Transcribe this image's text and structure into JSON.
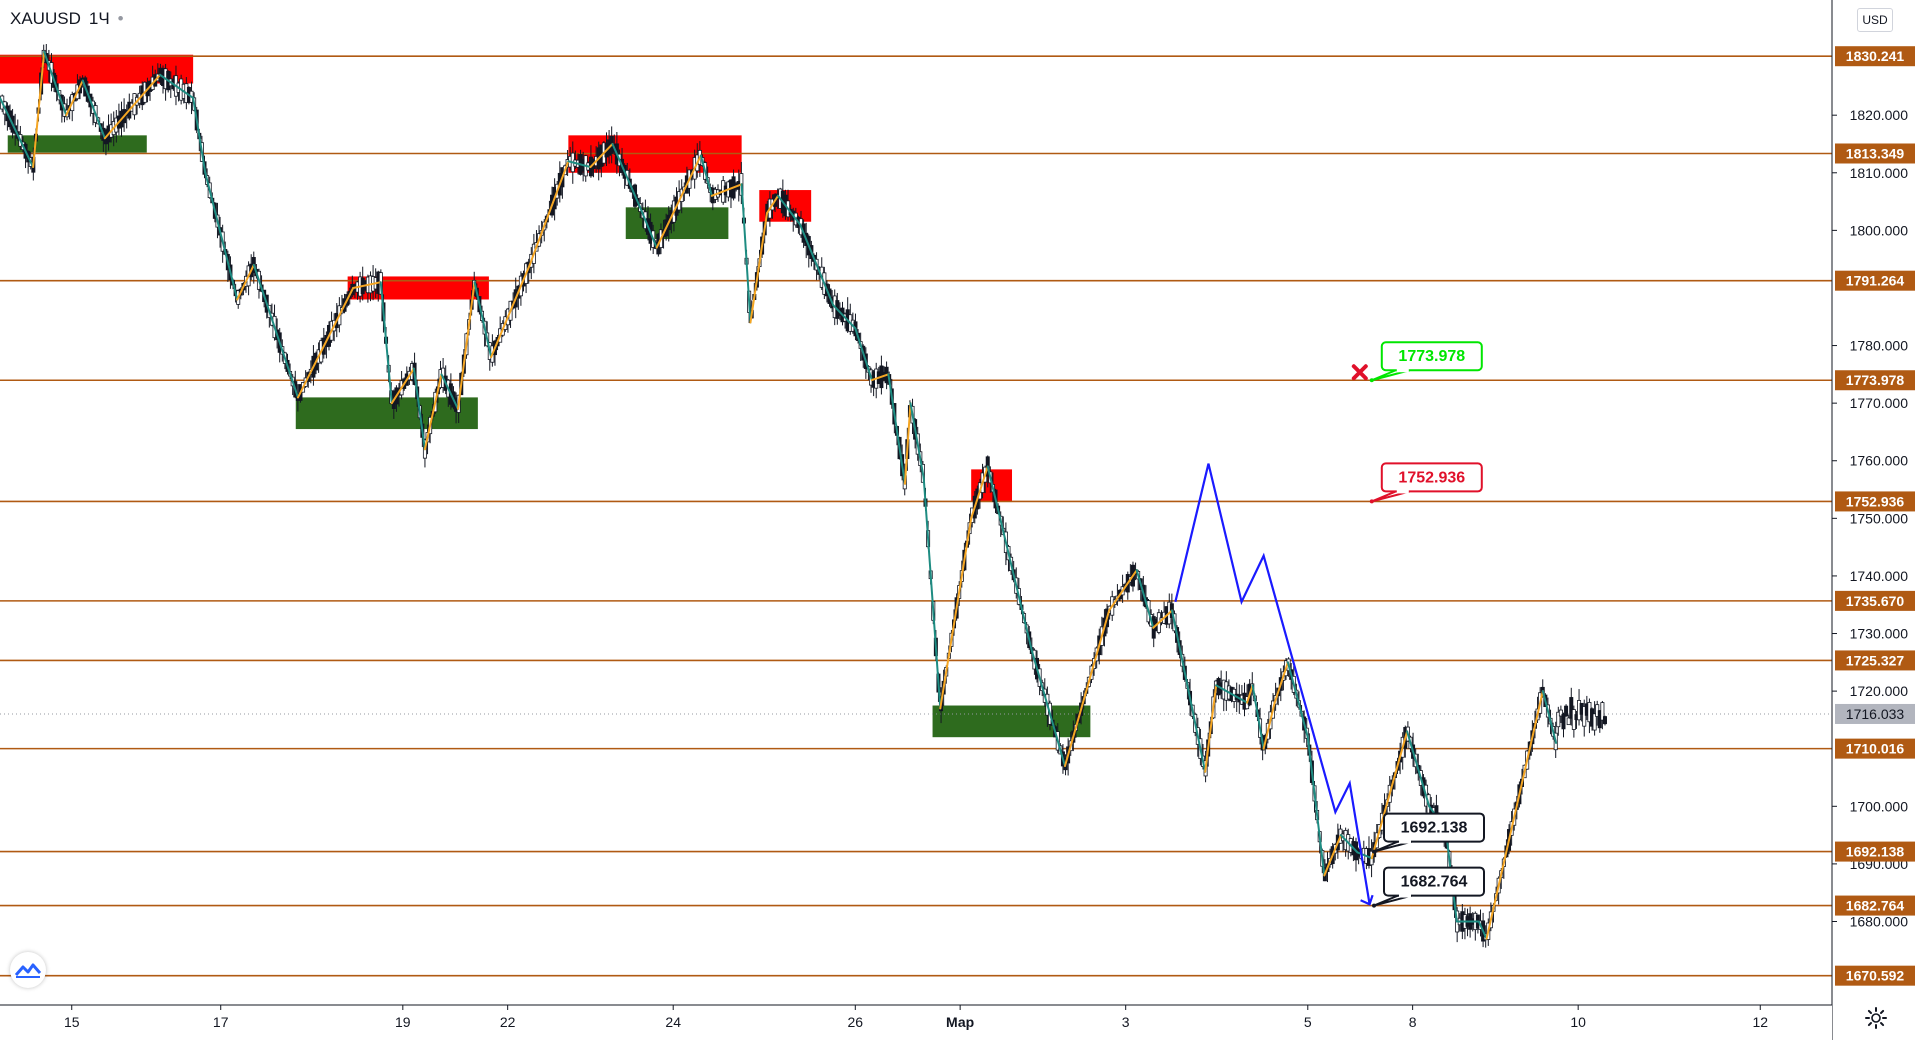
{
  "header": {
    "symbol": "XAUUSD",
    "interval": "1Ч",
    "dot": "•"
  },
  "currency_button": "USD",
  "colors": {
    "level_line": "#b05a13",
    "level_label_bg": "#b05a13",
    "supply_zone": "#ff0000",
    "demand_zone": "#2e6b1e",
    "wave_up": "#f5a623",
    "wave_down": "#1e8c82",
    "projection": "#1a1aff",
    "callout_green": "#00e600",
    "callout_red": "#e0102a",
    "current_price_bg": "#b2b5be",
    "candle": "#131722"
  },
  "icons": {
    "logo": "tradingview-logo-icon",
    "settings": "gear-icon",
    "cross": "cross-icon"
  },
  "chart_data": {
    "type": "candlestick",
    "symbol": "XAUUSD",
    "timeframe": "1H",
    "ylim": [
      1665.5,
      1840.0
    ],
    "xlim": [
      0,
      16.6
    ],
    "yticks": [
      1820,
      1810,
      1800,
      1780,
      1770,
      1760,
      1750,
      1740,
      1730,
      1720,
      1700,
      1690,
      1680
    ],
    "ytick_labels": [
      "1820.000",
      "1810.000",
      "1800.000",
      "1780.000",
      "1770.000",
      "1760.000",
      "1750.000",
      "1740.000",
      "1730.000",
      "1720.000",
      "1700.000",
      "1690.000",
      "1680.000"
    ],
    "xticks": [
      {
        "x": 0.65,
        "label": "15"
      },
      {
        "x": 2.0,
        "label": "17"
      },
      {
        "x": 3.65,
        "label": "19"
      },
      {
        "x": 4.6,
        "label": "22"
      },
      {
        "x": 6.1,
        "label": "24"
      },
      {
        "x": 7.75,
        "label": "26"
      },
      {
        "x": 8.7,
        "label": "Мар"
      },
      {
        "x": 10.2,
        "label": "3"
      },
      {
        "x": 11.85,
        "label": "5"
      },
      {
        "x": 12.8,
        "label": "8"
      },
      {
        "x": 14.3,
        "label": "10"
      },
      {
        "x": 15.95,
        "label": "12"
      }
    ],
    "levels": [
      1830.241,
      1813.349,
      1791.264,
      1773.978,
      1752.936,
      1735.67,
      1725.327,
      1710.016,
      1692.138,
      1682.764,
      1670.592
    ],
    "level_labels": [
      "1830.241",
      "1813.349",
      "1791.264",
      "1773.978",
      "1752.936",
      "1735.670",
      "1725.327",
      "1710.016",
      "1692.138",
      "1682.764",
      "1670.592"
    ],
    "current_price": 1716.033,
    "current_price_label": "1716.033",
    "supply_zones": [
      {
        "x0": 0.0,
        "x1": 1.75,
        "y0": 1825.5,
        "y1": 1830.5
      },
      {
        "x0": 5.15,
        "x1": 6.72,
        "y0": 1810.0,
        "y1": 1816.5
      },
      {
        "x0": 6.88,
        "x1": 7.35,
        "y0": 1801.5,
        "y1": 1807.0
      },
      {
        "x0": 3.15,
        "x1": 4.43,
        "y0": 1788.0,
        "y1": 1792.0
      },
      {
        "x0": 8.8,
        "x1": 9.17,
        "y0": 1753.0,
        "y1": 1758.5
      }
    ],
    "demand_zones": [
      {
        "x0": 0.07,
        "x1": 1.33,
        "y0": 1813.5,
        "y1": 1816.5
      },
      {
        "x0": 5.67,
        "x1": 6.6,
        "y0": 1798.5,
        "y1": 1804.0
      },
      {
        "x0": 2.68,
        "x1": 4.33,
        "y0": 1765.5,
        "y1": 1771.0
      },
      {
        "x0": 8.45,
        "x1": 9.88,
        "y0": 1712.0,
        "y1": 1717.5
      }
    ],
    "wave_path": [
      [
        0.0,
        1823
      ],
      [
        0.3,
        1811
      ],
      [
        0.4,
        1831
      ],
      [
        0.6,
        1820
      ],
      [
        0.75,
        1826
      ],
      [
        0.95,
        1816
      ],
      [
        1.45,
        1827
      ],
      [
        1.75,
        1823
      ],
      [
        1.86,
        1810
      ],
      [
        2.15,
        1788
      ],
      [
        2.3,
        1794
      ],
      [
        2.7,
        1771
      ],
      [
        3.2,
        1790
      ],
      [
        3.45,
        1791
      ],
      [
        3.55,
        1770
      ],
      [
        3.75,
        1776
      ],
      [
        3.85,
        1762
      ],
      [
        4.0,
        1775
      ],
      [
        4.15,
        1769
      ],
      [
        4.3,
        1791
      ],
      [
        4.45,
        1778
      ],
      [
        4.8,
        1794
      ],
      [
        5.15,
        1812
      ],
      [
        5.35,
        1811
      ],
      [
        5.55,
        1815
      ],
      [
        5.8,
        1804
      ],
      [
        5.95,
        1797
      ],
      [
        6.35,
        1813
      ],
      [
        6.45,
        1806
      ],
      [
        6.72,
        1808
      ],
      [
        6.8,
        1784
      ],
      [
        6.95,
        1803
      ],
      [
        7.05,
        1806
      ],
      [
        7.25,
        1801
      ],
      [
        7.55,
        1787
      ],
      [
        7.75,
        1783
      ],
      [
        7.9,
        1774
      ],
      [
        8.05,
        1775
      ],
      [
        8.2,
        1756
      ],
      [
        8.25,
        1770
      ],
      [
        8.37,
        1757
      ],
      [
        8.52,
        1717
      ],
      [
        8.8,
        1750
      ],
      [
        8.95,
        1759
      ],
      [
        9.35,
        1727
      ],
      [
        9.65,
        1707
      ],
      [
        10.05,
        1734
      ],
      [
        10.3,
        1741
      ],
      [
        10.45,
        1731
      ],
      [
        10.62,
        1734
      ],
      [
        10.92,
        1706
      ],
      [
        11.02,
        1721
      ],
      [
        11.3,
        1718
      ],
      [
        11.35,
        1721
      ],
      [
        11.45,
        1710
      ],
      [
        11.55,
        1718
      ],
      [
        11.67,
        1725
      ],
      [
        11.85,
        1712
      ],
      [
        12.0,
        1688
      ],
      [
        12.15,
        1695
      ],
      [
        12.3,
        1692
      ],
      [
        12.43,
        1691
      ],
      [
        12.75,
        1713
      ],
      [
        12.95,
        1700
      ],
      [
        13.1,
        1696
      ],
      [
        13.2,
        1680
      ],
      [
        13.4,
        1680
      ],
      [
        13.47,
        1677
      ],
      [
        13.98,
        1720
      ],
      [
        14.1,
        1711
      ]
    ],
    "projection_path": [
      [
        10.65,
        1735.5
      ],
      [
        10.95,
        1759.5
      ],
      [
        11.25,
        1735.5
      ],
      [
        11.45,
        1743.5
      ],
      [
        12.1,
        1699
      ],
      [
        12.23,
        1704
      ],
      [
        12.41,
        1683
      ]
    ],
    "callouts": [
      {
        "text": "1773.978",
        "anchor_x": 12.43,
        "anchor_y": 1773.978,
        "style": "green",
        "marker": true
      },
      {
        "text": "1752.936",
        "anchor_x": 12.43,
        "anchor_y": 1752.936,
        "style": "red"
      },
      {
        "text": "1692.138",
        "anchor_x": 12.45,
        "anchor_y": 1692.138,
        "style": "black"
      },
      {
        "text": "1682.764",
        "anchor_x": 12.45,
        "anchor_y": 1682.764,
        "style": "black"
      }
    ]
  }
}
